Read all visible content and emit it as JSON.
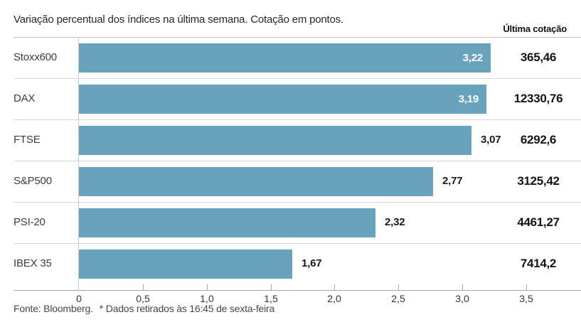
{
  "header": {
    "title": "Variação percentual dos índices na última semana. Cotação em pontos.",
    "right_column_header": "Última cotação"
  },
  "chart_data": {
    "type": "bar",
    "orientation": "horizontal",
    "title": "Variação percentual dos índices na última semana. Cotação em pontos.",
    "categories": [
      "Stoxx600",
      "DAX",
      "FTSE",
      "S&P500",
      "PSI-20",
      "IBEX 35"
    ],
    "values": [
      3.22,
      3.19,
      3.07,
      2.77,
      2.32,
      1.67
    ],
    "value_labels": [
      "3,22",
      "3,19",
      "3,07",
      "2,77",
      "2,32",
      "1,67"
    ],
    "value_label_placement": [
      "inside",
      "inside",
      "outside",
      "outside",
      "outside",
      "outside"
    ],
    "right_column_header": "Última cotação",
    "last_quotes": [
      "365,46",
      "12330,76",
      "6292,6",
      "3125,42",
      "4461,27",
      "7414,2"
    ],
    "x_ticks": [
      "0",
      "0,5",
      "1,0",
      "1,5",
      "2,0",
      "2,5",
      "3,0",
      "3,5"
    ],
    "x_tick_values": [
      0,
      0.5,
      1.0,
      1.5,
      2.0,
      2.5,
      3.0,
      3.5
    ],
    "xlim": [
      0,
      3.5
    ],
    "xlabel": "",
    "ylabel": "",
    "grid": false,
    "legend": "none",
    "colors": {
      "bar": "#69a2bc",
      "bar_label_inside": "#ffffff",
      "bar_label_outside": "#1a1a1a"
    }
  },
  "footer": {
    "source": "Fonte: Bloomberg.",
    "note": "* Dados retirados às 16:45 de sexta-feira"
  }
}
